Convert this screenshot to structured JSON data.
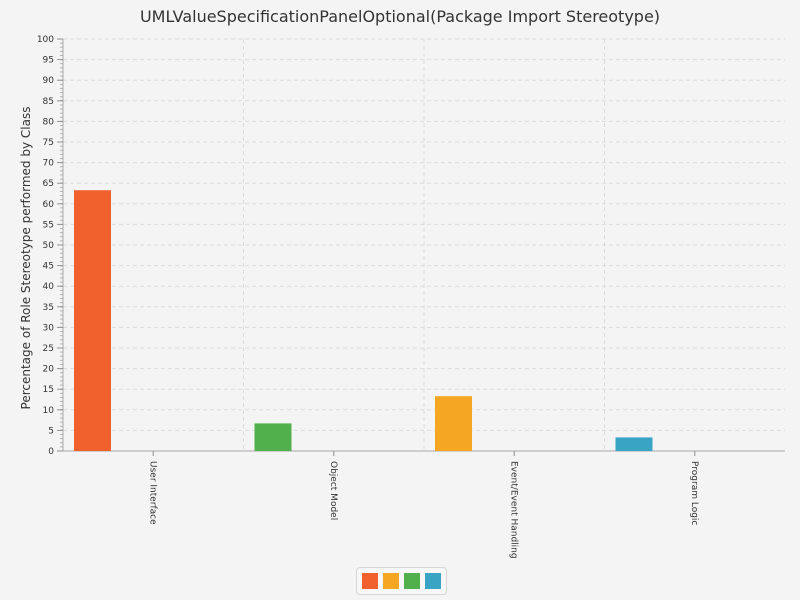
{
  "chart_data": {
    "type": "bar",
    "title": "UMLValueSpecificationPanelOptional(Package Import Stereotype)",
    "xlabel": "",
    "ylabel": "Percentage of Role Stereotype performed by Class",
    "ylim": [
      0,
      100
    ],
    "y_major_step": 5,
    "grid": true,
    "legend_position": "bottom",
    "categories": [
      "User Interface",
      "Object Model",
      "Event/Event Handling",
      "Program Logic"
    ],
    "values": [
      63.3,
      6.7,
      13.3,
      3.3
    ],
    "colors": [
      "#f0612d",
      "#52b04c",
      "#f5a623",
      "#3aa4c4"
    ]
  },
  "legend": {
    "swatches": [
      "#f0612d",
      "#f5a623",
      "#52b04c",
      "#3aa4c4"
    ]
  }
}
